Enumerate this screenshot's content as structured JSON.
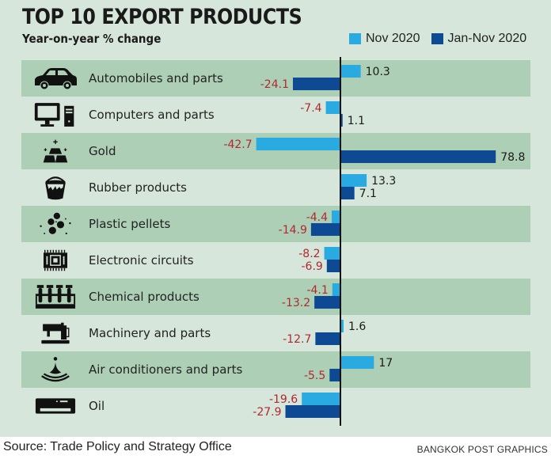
{
  "chart_data": {
    "type": "bar",
    "orientation": "horizontal",
    "title": "TOP 10 EXPORT PRODUCTS",
    "subtitle": "Year-on-year % change",
    "xlabel": "",
    "ylabel": "",
    "xlim": [
      -50,
      85
    ],
    "grid": false,
    "legend_position": "top-right",
    "categories": [
      "Automobiles and parts",
      "Computers and parts",
      "Gold",
      "Rubber products",
      "Plastic pellets",
      "Electronic circuits",
      "Chemical products",
      "Machinery and parts",
      "Air conditioners and parts",
      "Oil"
    ],
    "icons": [
      "car-icon",
      "computer-icon",
      "gold-bars-icon",
      "bucket-icon",
      "pellets-icon",
      "chip-icon",
      "test-tubes-icon",
      "sewing-machine-icon",
      "droplet-icon",
      "air-conditioner-icon"
    ],
    "series": [
      {
        "name": "Nov 2020",
        "color": "#29abe2",
        "values": [
          10.3,
          -7.4,
          -42.7,
          13.3,
          -4.4,
          -8.2,
          -4.1,
          1.6,
          17,
          -19.6
        ],
        "labels": [
          "10.3",
          "-7.4",
          "-42.7",
          "13.3",
          "-4.4",
          "-8.2",
          "-4.1",
          "1.6",
          "17",
          "-19.6"
        ]
      },
      {
        "name": "Jan-Nov 2020",
        "color": "#0d4a93",
        "values": [
          -24.1,
          1.1,
          78.8,
          7.1,
          -14.9,
          -6.9,
          -13.2,
          -12.7,
          -5.5,
          -27.9
        ],
        "labels": [
          "-24.1",
          "1.1",
          "78.8",
          "7.1",
          "-14.9",
          "-6.9",
          "-13.2",
          "-12.7",
          "-5.5",
          "-27.9"
        ]
      }
    ],
    "colors": {
      "positive_label": "#1a1a1a",
      "negative_label": "#b3272f",
      "band": "#adcfb6",
      "background": "#d6e6da"
    }
  },
  "footer": {
    "source": "Source: Trade Policy and Strategy Office",
    "credit": "BANGKOK POST GRAPHICS"
  }
}
